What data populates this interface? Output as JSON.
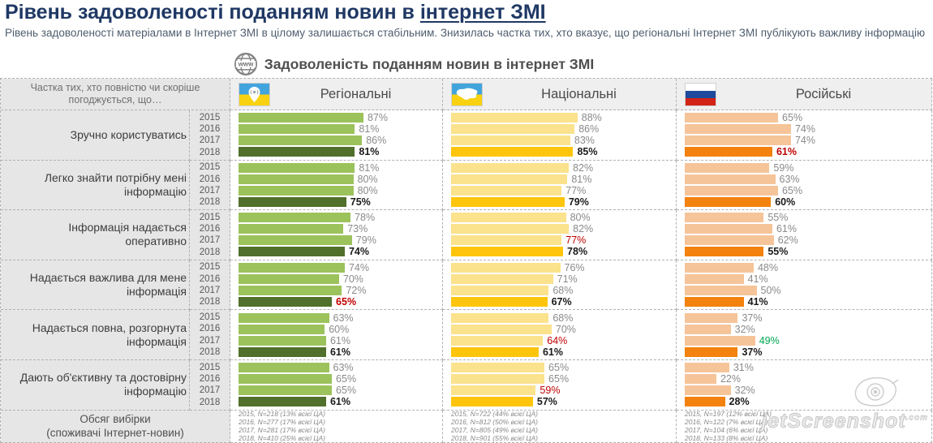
{
  "page": {
    "title_plain": "Рівень задоволеності поданням новин в ",
    "title_underlined": "інтернет ЗМІ",
    "subtitle": "Рівень задоволеності матеріалами в Інтернет ЗМІ в цілому залишається стабільним. Знизилась частка тих, хто вказує, що регіональні Інтернет ЗМІ публікують важливу інформацію"
  },
  "chart_data": {
    "type": "bar",
    "title": "Задоволеність поданням новин в інтернет ЗМІ",
    "header_note": "Частка тих, хто повністю чи скоріше погоджується, що…",
    "unit": "%",
    "xlim": [
      0,
      100
    ],
    "years": [
      "2015",
      "2016",
      "2017",
      "2018"
    ],
    "columns": [
      {
        "key": "regional",
        "label": "Регіональні",
        "flag": "ukraine-pin-flag",
        "bar_color": "#9cc25c",
        "bar_color_2018": "#50702b"
      },
      {
        "key": "national",
        "label": "Національні",
        "flag": "ukraine-map-flag",
        "bar_color": "#fbe28c",
        "bar_color_2018": "#fec50c"
      },
      {
        "key": "russian",
        "label": "Російські",
        "flag": "russia-flag",
        "bar_color": "#f6c499",
        "bar_color_2018": "#f3820e"
      }
    ],
    "accent_colors": {
      "negative_text": "#c00000",
      "positive_text": "#00a651",
      "bold_text": "#1a1a1a",
      "normal_text": "#8a8a8a"
    },
    "rows": [
      {
        "category": "Зручно користуватись",
        "regional": [
          [
            87,
            ""
          ],
          [
            81,
            ""
          ],
          [
            86,
            ""
          ],
          [
            81,
            "bold"
          ]
        ],
        "national": [
          [
            88,
            ""
          ],
          [
            86,
            ""
          ],
          [
            83,
            ""
          ],
          [
            85,
            "bold"
          ]
        ],
        "russian": [
          [
            65,
            ""
          ],
          [
            74,
            ""
          ],
          [
            74,
            ""
          ],
          [
            61,
            "bold red"
          ]
        ]
      },
      {
        "category": "Легко знайти потрібну мені інформацію",
        "regional": [
          [
            81,
            ""
          ],
          [
            80,
            ""
          ],
          [
            80,
            ""
          ],
          [
            75,
            "bold"
          ]
        ],
        "national": [
          [
            82,
            ""
          ],
          [
            81,
            ""
          ],
          [
            77,
            ""
          ],
          [
            79,
            "bold"
          ]
        ],
        "russian": [
          [
            59,
            ""
          ],
          [
            63,
            ""
          ],
          [
            65,
            ""
          ],
          [
            60,
            "bold"
          ]
        ]
      },
      {
        "category": "Інформація надається оперативно",
        "regional": [
          [
            78,
            ""
          ],
          [
            73,
            ""
          ],
          [
            79,
            ""
          ],
          [
            74,
            "bold"
          ]
        ],
        "national": [
          [
            80,
            ""
          ],
          [
            82,
            ""
          ],
          [
            77,
            "red"
          ],
          [
            78,
            "bold"
          ]
        ],
        "russian": [
          [
            55,
            ""
          ],
          [
            61,
            ""
          ],
          [
            62,
            ""
          ],
          [
            55,
            "bold"
          ]
        ]
      },
      {
        "category": "Надається важлива для мене інформація",
        "regional": [
          [
            74,
            ""
          ],
          [
            70,
            ""
          ],
          [
            72,
            ""
          ],
          [
            65,
            "bold red"
          ]
        ],
        "national": [
          [
            76,
            ""
          ],
          [
            71,
            ""
          ],
          [
            68,
            ""
          ],
          [
            67,
            "bold"
          ]
        ],
        "russian": [
          [
            48,
            ""
          ],
          [
            41,
            ""
          ],
          [
            50,
            ""
          ],
          [
            41,
            "bold"
          ]
        ]
      },
      {
        "category": "Надається повна, розгорнута інформація",
        "regional": [
          [
            63,
            ""
          ],
          [
            60,
            ""
          ],
          [
            61,
            ""
          ],
          [
            61,
            "bold"
          ]
        ],
        "national": [
          [
            68,
            ""
          ],
          [
            70,
            ""
          ],
          [
            64,
            "red"
          ],
          [
            61,
            "bold"
          ]
        ],
        "russian": [
          [
            37,
            ""
          ],
          [
            32,
            ""
          ],
          [
            49,
            "green"
          ],
          [
            37,
            "bold"
          ]
        ]
      },
      {
        "category": "Дають об'єктивну та достовірну інформацію",
        "regional": [
          [
            63,
            ""
          ],
          [
            65,
            ""
          ],
          [
            65,
            ""
          ],
          [
            61,
            "bold"
          ]
        ],
        "national": [
          [
            65,
            ""
          ],
          [
            65,
            ""
          ],
          [
            59,
            "red"
          ],
          [
            57,
            "bold"
          ]
        ],
        "russian": [
          [
            31,
            ""
          ],
          [
            22,
            ""
          ],
          [
            32,
            ""
          ],
          [
            28,
            "bold"
          ]
        ]
      }
    ],
    "sample": {
      "label_line1": "Обсяг вибірки",
      "label_line2": "(споживачі Інтернет-новин)",
      "regional": [
        "2015, N=218 (13% всієї ЦА)",
        "2016, N=277 (17% всієї ЦА)",
        "2017, N=281 (17% всієї ЦА)",
        "2018, N=410 (25% всієї ЦА)"
      ],
      "national": [
        "2015, N=722 (44% всієї ЦА)",
        "2016, N=812 (50% всієї ЦА)",
        "2017, N=805 (49% всієї ЦА)",
        "2018, N=901 (55% всієї ЦА)"
      ],
      "russian": [
        "2015, N=197 (12% всієї ЦА)",
        "2016, N=122 (7% всієї ЦА)",
        "2017, N=104 (6% всієї ЦА)",
        "2018, N=133 (8% всієї ЦА)"
      ]
    }
  },
  "watermark": {
    "text": "jetScreenshot",
    "tld": ".com"
  }
}
